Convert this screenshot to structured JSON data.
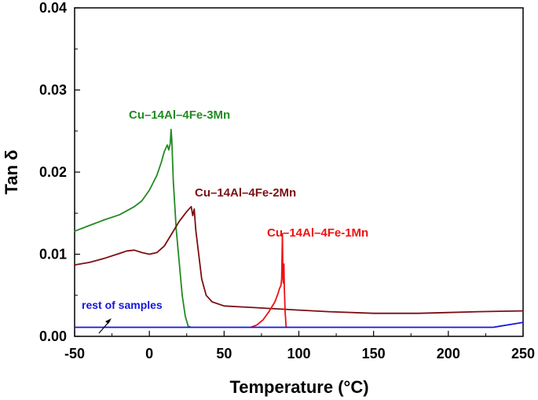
{
  "chart_data": {
    "type": "line",
    "title": "",
    "xlabel": "Temperature (°C)",
    "ylabel": "Tan δ",
    "xlim": [
      -50,
      250
    ],
    "ylim": [
      0,
      0.04
    ],
    "x_ticks": [
      -50,
      0,
      50,
      100,
      150,
      200,
      250
    ],
    "x_tick_labels": [
      "-50",
      "0",
      "50",
      "100",
      "150",
      "200",
      "250"
    ],
    "y_ticks": [
      0,
      0.01,
      0.02,
      0.03,
      0.04
    ],
    "y_tick_labels": [
      "0.00",
      "0.01",
      "0.02",
      "0.03",
      "0.04"
    ],
    "grid": false,
    "legend": "none (direct labels)",
    "series": [
      {
        "name": "Cu–14Al–4Fe-3Mn",
        "color": "#228B22",
        "x": [
          -50,
          -40,
          -30,
          -20,
          -10,
          -5,
          0,
          5,
          8,
          10,
          12,
          13,
          14,
          14.5,
          15,
          15.5,
          16,
          17,
          18,
          20,
          22,
          24,
          26,
          27
        ],
        "y": [
          0.0128,
          0.0135,
          0.0142,
          0.0148,
          0.0158,
          0.0165,
          0.0178,
          0.0196,
          0.0212,
          0.0225,
          0.0233,
          0.0227,
          0.0235,
          0.0252,
          0.024,
          0.0215,
          0.019,
          0.016,
          0.013,
          0.009,
          0.005,
          0.0025,
          0.0012,
          0.0012
        ]
      },
      {
        "name": "Cu–14Al–4Fe-2Mn",
        "color": "#7B0F12",
        "x": [
          -50,
          -40,
          -30,
          -20,
          -15,
          -10,
          -5,
          0,
          5,
          10,
          15,
          20,
          25,
          28,
          29,
          30,
          31,
          33,
          35,
          38,
          42,
          50,
          60,
          70,
          80,
          90,
          100,
          120,
          150,
          180,
          200,
          220,
          250
        ],
        "y": [
          0.0087,
          0.009,
          0.0095,
          0.0101,
          0.0104,
          0.0105,
          0.0102,
          0.01,
          0.0102,
          0.011,
          0.0125,
          0.014,
          0.0152,
          0.0158,
          0.0147,
          0.0155,
          0.013,
          0.01,
          0.007,
          0.005,
          0.0042,
          0.0037,
          0.0036,
          0.0035,
          0.0034,
          0.0033,
          0.0032,
          0.003,
          0.0028,
          0.0028,
          0.0029,
          0.003,
          0.0031
        ]
      },
      {
        "name": "Cu–14Al–4Fe-1Mn",
        "color": "#EE1111",
        "x": [
          68,
          72,
          76,
          80,
          84,
          86,
          87,
          88,
          88.5,
          89,
          89.3,
          89.6,
          90,
          90.3,
          90.8,
          91.5,
          92
        ],
        "y": [
          0.0011,
          0.0014,
          0.002,
          0.003,
          0.0042,
          0.0052,
          0.0058,
          0.0062,
          0.007,
          0.0125,
          0.008,
          0.0065,
          0.0088,
          0.006,
          0.003,
          0.0012,
          0.0011
        ]
      },
      {
        "name": "rest of samples",
        "color": "#1515E0",
        "x": [
          -50,
          0,
          50,
          100,
          150,
          200,
          230,
          240,
          250
        ],
        "y": [
          0.0011,
          0.0011,
          0.0011,
          0.0011,
          0.0011,
          0.0011,
          0.0011,
          0.0014,
          0.0017
        ]
      }
    ],
    "annotations": [
      {
        "text": "Cu–14Al–4Fe-3Mn",
        "color": "#228B22"
      },
      {
        "text": "Cu–14Al–4Fe-2Mn",
        "color": "#7B0F12"
      },
      {
        "text": "Cu–14Al–4Fe-1Mn",
        "color": "#EE1111"
      },
      {
        "text": "rest of samples",
        "color": "#1515E0"
      }
    ]
  }
}
